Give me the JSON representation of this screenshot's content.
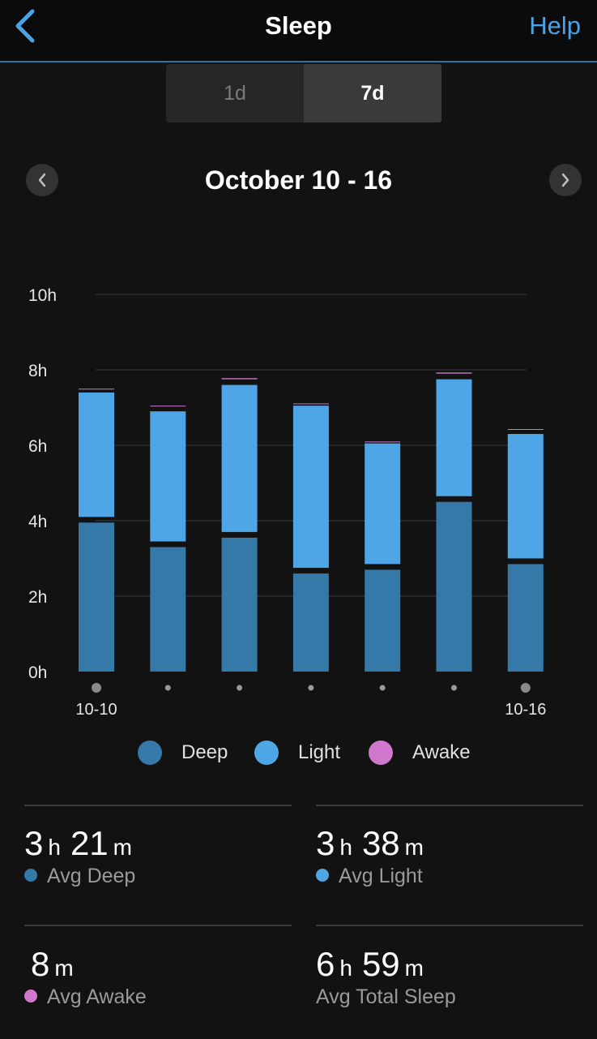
{
  "header": {
    "title": "Sleep",
    "help_label": "Help"
  },
  "tabs": [
    {
      "label": "1d"
    },
    {
      "label": "7d"
    }
  ],
  "date_range": "October 10 - 16",
  "chart_data": {
    "type": "bar",
    "stacked": true,
    "x_tick_labels": [
      "10-10",
      "",
      "",
      "",
      "",
      "",
      "10-16"
    ],
    "y_tick_labels": [
      "0h",
      "2h",
      "4h",
      "6h",
      "8h",
      "10h"
    ],
    "ylim": [
      0,
      10
    ],
    "grid": true,
    "series": [
      {
        "name": "Deep",
        "color": "#3479a8",
        "values": [
          3.95,
          3.3,
          3.55,
          2.6,
          2.7,
          4.5,
          2.85
        ]
      },
      {
        "name": "Light",
        "color": "#4ea6e6",
        "values": [
          3.45,
          3.6,
          4.05,
          4.45,
          3.35,
          3.25,
          3.45
        ]
      },
      {
        "name": "Awake",
        "color": "#cf78cd",
        "values": [
          0.1,
          0.15,
          0.18,
          0.06,
          0.05,
          0.18,
          0.13
        ]
      }
    ]
  },
  "legend": [
    {
      "label": "Deep",
      "color": "#3479a8"
    },
    {
      "label": "Light",
      "color": "#4ea6e6"
    },
    {
      "label": "Awake",
      "color": "#cf78cd"
    }
  ],
  "stats": {
    "avg_deep": {
      "h": "3",
      "h_unit": "h",
      "m": "21",
      "m_unit": "m",
      "label": "Avg Deep",
      "color": "#3479a8"
    },
    "avg_light": {
      "h": "3",
      "h_unit": "h",
      "m": "38",
      "m_unit": "m",
      "label": "Avg Light",
      "color": "#4ea6e6"
    },
    "avg_awake": {
      "m": "8",
      "m_unit": "m",
      "label": "Avg Awake",
      "color": "#cf78cd"
    },
    "avg_total": {
      "h": "6",
      "h_unit": "h",
      "m": "59",
      "m_unit": "m",
      "label": "Avg Total Sleep"
    }
  }
}
